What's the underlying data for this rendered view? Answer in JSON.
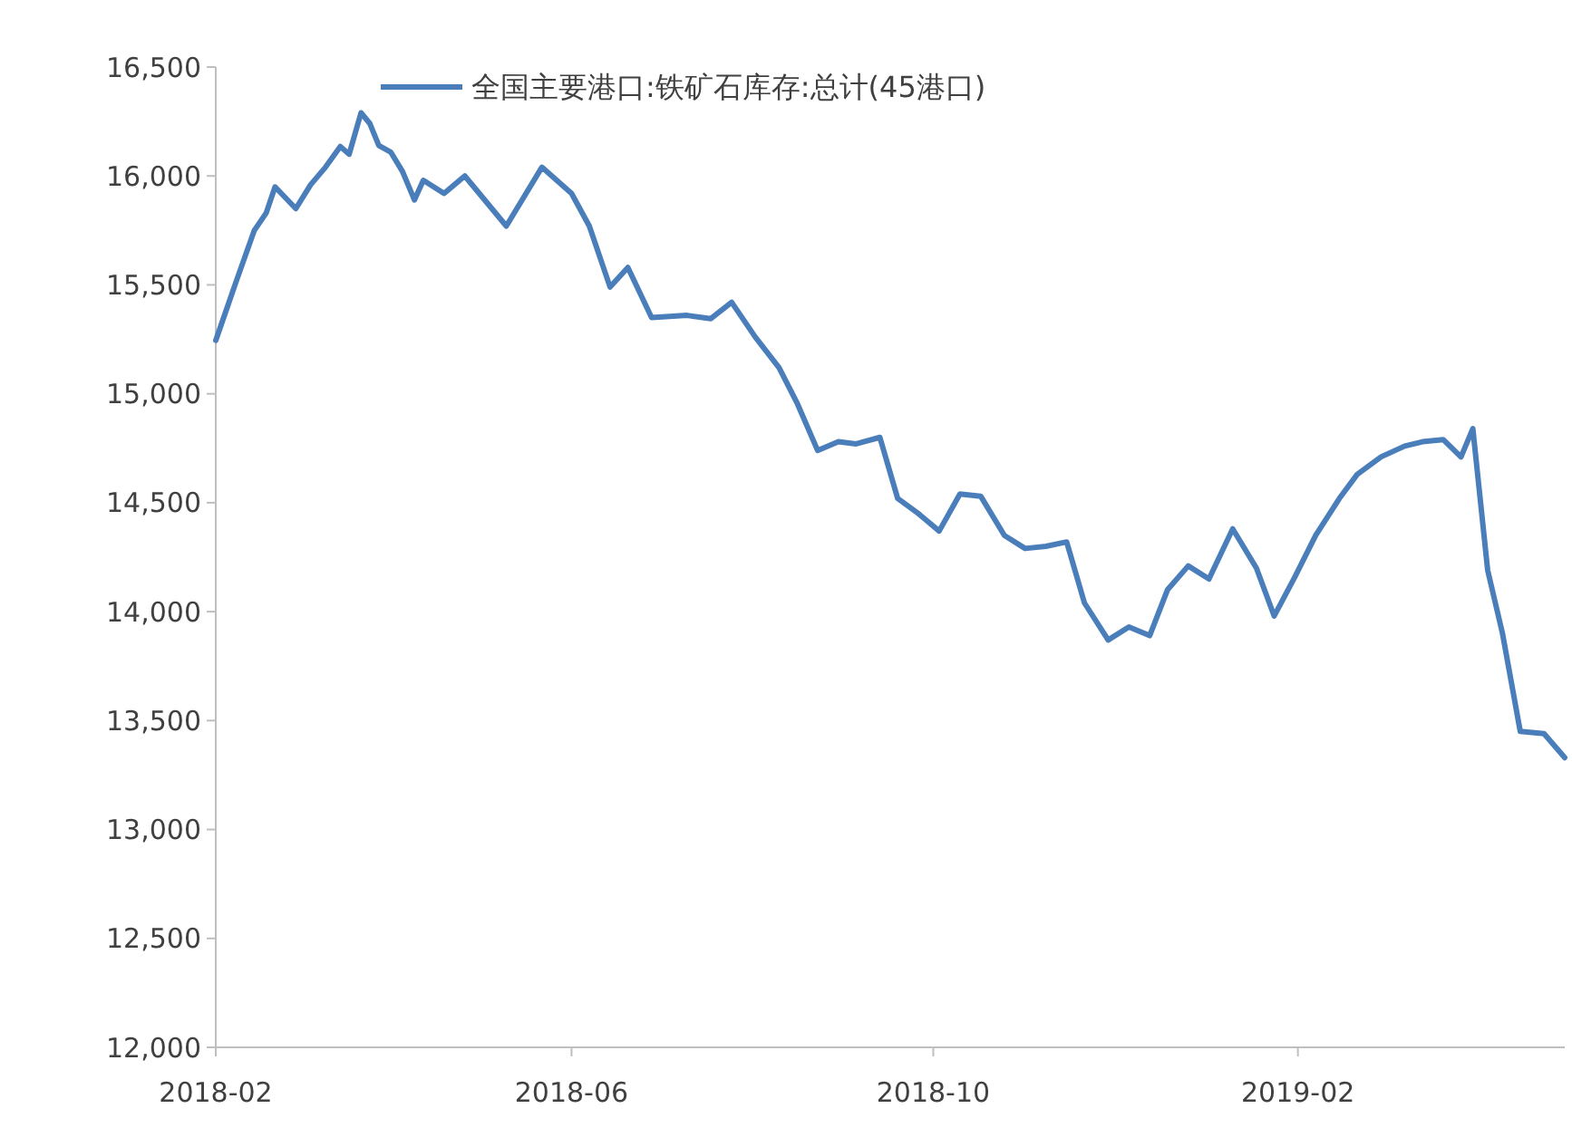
{
  "chart_data": {
    "type": "line",
    "legend": "top",
    "marker": "none",
    "line_style": "solid",
    "x": [
      "2018-02-01",
      "2018-02-08",
      "2018-02-14",
      "2018-02-18",
      "2018-02-21",
      "2018-02-28",
      "2018-03-05",
      "2018-03-10",
      "2018-03-15",
      "2018-03-18",
      "2018-03-22",
      "2018-03-25",
      "2018-03-28",
      "2018-04-01",
      "2018-04-05",
      "2018-04-09",
      "2018-04-12",
      "2018-04-19",
      "2018-04-26",
      "2018-05-10",
      "2018-05-22",
      "2018-06-01",
      "2018-06-07",
      "2018-06-14",
      "2018-06-20",
      "2018-06-28",
      "2018-07-10",
      "2018-07-18",
      "2018-07-25",
      "2018-08-02",
      "2018-08-10",
      "2018-08-16",
      "2018-08-23",
      "2018-08-30",
      "2018-09-05",
      "2018-09-13",
      "2018-09-19",
      "2018-09-26",
      "2018-10-03",
      "2018-10-10",
      "2018-10-17",
      "2018-10-25",
      "2018-11-01",
      "2018-11-08",
      "2018-11-15",
      "2018-11-21",
      "2018-11-29",
      "2018-12-06",
      "2018-12-13",
      "2018-12-19",
      "2018-12-26",
      "2019-01-02",
      "2019-01-10",
      "2019-01-18",
      "2019-01-24",
      "2019-01-31",
      "2019-02-07",
      "2019-02-15",
      "2019-02-21",
      "2019-03-01",
      "2019-03-09",
      "2019-03-15",
      "2019-03-22",
      "2019-03-28",
      "2019-04-01",
      "2019-04-06",
      "2019-04-11",
      "2019-04-17",
      "2019-04-25",
      "2019-05-02"
    ],
    "series": [
      {
        "name": "全国主要港口:铁矿石库存:总计(45港口)",
        "color": "#4a7ebb",
        "values": [
          15245,
          15520,
          15750,
          15830,
          15950,
          15850,
          15960,
          16040,
          16135,
          16100,
          16290,
          16240,
          16140,
          16110,
          16020,
          15890,
          15980,
          15920,
          16000,
          15770,
          16040,
          15920,
          15770,
          15490,
          15580,
          15350,
          15360,
          15345,
          15420,
          15260,
          15120,
          14960,
          14740,
          14780,
          14770,
          14800,
          14520,
          14450,
          14370,
          14540,
          14530,
          14350,
          14290,
          14300,
          14320,
          14040,
          13870,
          13930,
          13890,
          14100,
          14210,
          14150,
          14380,
          14200,
          13980,
          14160,
          14350,
          14520,
          14630,
          14710,
          14760,
          14780,
          14790,
          14710,
          14840,
          14190,
          13900,
          13450,
          13440,
          13330
        ]
      }
    ],
    "xlim": [
      "2018-02-01",
      "2019-05-02"
    ],
    "xticks": [
      {
        "value": "2018-02-01",
        "label": "2018-02"
      },
      {
        "value": "2018-06-01",
        "label": "2018-06"
      },
      {
        "value": "2018-10-01",
        "label": "2018-10"
      },
      {
        "value": "2019-02-01",
        "label": "2019-02"
      }
    ],
    "ylim": [
      12000,
      16500
    ],
    "yticks": [
      {
        "value": 12000,
        "label": "12,000"
      },
      {
        "value": 12500,
        "label": "12,500"
      },
      {
        "value": 13000,
        "label": "13,000"
      },
      {
        "value": 13500,
        "label": "13,500"
      },
      {
        "value": 14000,
        "label": "14,000"
      },
      {
        "value": 14500,
        "label": "14,500"
      },
      {
        "value": 15000,
        "label": "15,000"
      },
      {
        "value": 15500,
        "label": "15,500"
      },
      {
        "value": 16000,
        "label": "16,000"
      },
      {
        "value": 16500,
        "label": "16,500"
      }
    ]
  }
}
